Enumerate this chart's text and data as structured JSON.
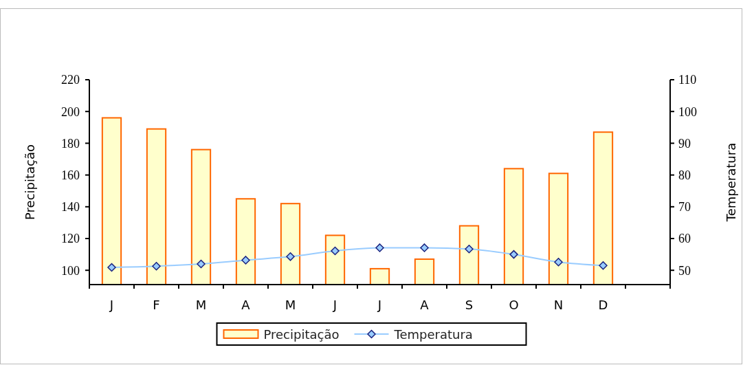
{
  "chart_data": {
    "type": "bar",
    "categories": [
      "J",
      "F",
      "M",
      "A",
      "M",
      "J",
      "J",
      "A",
      "S",
      "O",
      "N",
      "D"
    ],
    "ylabel": "Precipitação",
    "y2label": "Temperatura",
    "ylim": [
      91,
      220
    ],
    "yticks": [
      100,
      120,
      140,
      160,
      180,
      200,
      220
    ],
    "y2lim": [
      45.5,
      110
    ],
    "y2ticks": [
      50,
      60,
      70,
      80,
      90,
      100,
      110
    ],
    "legend": "bottom",
    "marker": "diamond",
    "line_style": "solid",
    "series": [
      {
        "name": "Precipitação",
        "color": "#ffffcc",
        "values": [
          196,
          189,
          176,
          145,
          142,
          122,
          101,
          107,
          128,
          164,
          161,
          187
        ]
      },
      {
        "name": "Temperatura",
        "type": "line",
        "axis": "y2",
        "color": "#99ccff",
        "values": [
          50.9,
          51.3,
          52,
          53.2,
          54.3,
          56.1,
          57.1,
          57.1,
          56.7,
          55,
          52.6,
          51.5
        ]
      }
    ]
  }
}
